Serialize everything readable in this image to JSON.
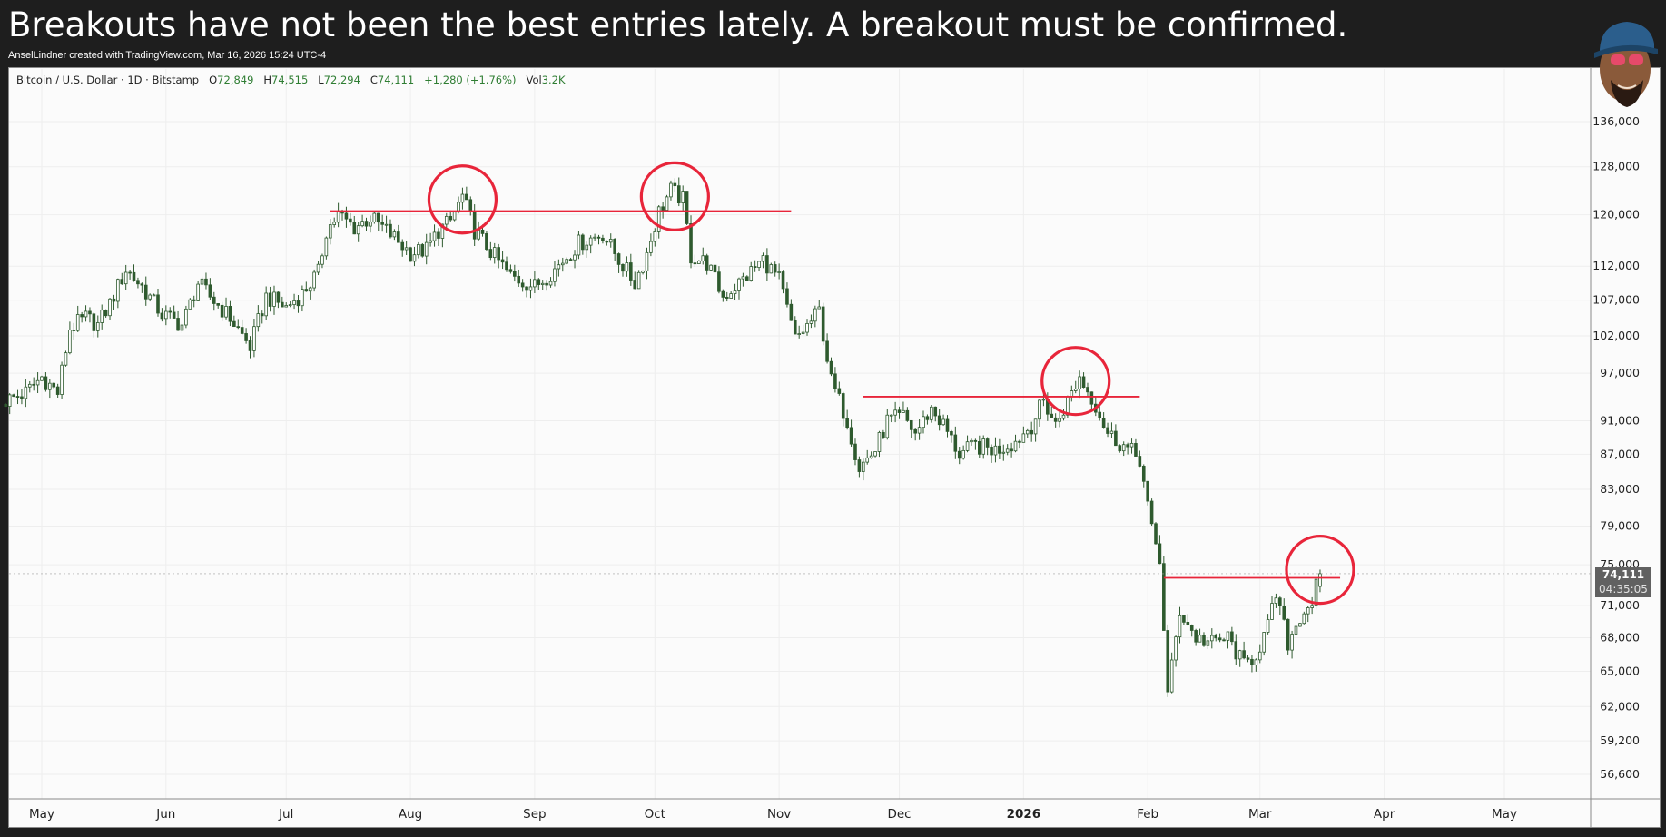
{
  "headline": "Breakouts have not been the best entries lately. A breakout must be confirmed.",
  "credit": "AnselLindner created with TradingView.com, Mar 16, 2026 15:24 UTC-4",
  "legend": {
    "symbol": "Bitcoin / U.S. Dollar · 1D · Bitstamp",
    "open_label": "O",
    "open": "72,849",
    "high_label": "H",
    "high": "74,515",
    "low_label": "L",
    "low": "72,294",
    "close_label": "C",
    "close": "74,111",
    "change": "+1,280 (+1.76%)",
    "vol_label": "Vol",
    "vol": "3.2K"
  },
  "price_tag": {
    "price": "74,111",
    "countdown": "04:35:05"
  },
  "colors": {
    "candle": "#2e5a2e",
    "annotation": "#e8253a",
    "grid": "#eeeeee",
    "background": "#fbfbfb"
  },
  "chart_data": {
    "type": "candlestick",
    "title": "Bitcoin / U.S. Dollar · 1D · Bitstamp",
    "scale": "log",
    "ylim": [
      54000,
      148000
    ],
    "y_ticks": [
      {
        "v": 136000,
        "label": "136,000"
      },
      {
        "v": 128000,
        "label": "128,000"
      },
      {
        "v": 120000,
        "label": "120,000"
      },
      {
        "v": 112000,
        "label": "112,000"
      },
      {
        "v": 107000,
        "label": "107,000"
      },
      {
        "v": 102000,
        "label": "102,000"
      },
      {
        "v": 97000,
        "label": "97,000"
      },
      {
        "v": 91000,
        "label": "91,000"
      },
      {
        "v": 87000,
        "label": "87,000"
      },
      {
        "v": 83000,
        "label": "83,000"
      },
      {
        "v": 79000,
        "label": "79,000"
      },
      {
        "v": 75000,
        "label": "75,000"
      },
      {
        "v": 71000,
        "label": "71,000"
      },
      {
        "v": 68000,
        "label": "68,000"
      },
      {
        "v": 65000,
        "label": "65,000"
      },
      {
        "v": 62000,
        "label": "62,000"
      },
      {
        "v": 59200,
        "label": "59,200"
      },
      {
        "v": 56600,
        "label": "56,600"
      }
    ],
    "x_ticks": [
      {
        "date": "2025-05-01",
        "label": "May",
        "bold": false
      },
      {
        "date": "2025-06-01",
        "label": "Jun",
        "bold": false
      },
      {
        "date": "2025-07-01",
        "label": "Jul",
        "bold": false
      },
      {
        "date": "2025-08-01",
        "label": "Aug",
        "bold": false
      },
      {
        "date": "2025-09-01",
        "label": "Sep",
        "bold": false
      },
      {
        "date": "2025-10-01",
        "label": "Oct",
        "bold": false
      },
      {
        "date": "2025-11-01",
        "label": "Nov",
        "bold": false
      },
      {
        "date": "2025-12-01",
        "label": "Dec",
        "bold": false
      },
      {
        "date": "2026-01-01",
        "label": "2026",
        "bold": true
      },
      {
        "date": "2026-02-01",
        "label": "Feb",
        "bold": false
      },
      {
        "date": "2026-03-01",
        "label": "Mar",
        "bold": false
      },
      {
        "date": "2026-04-01",
        "label": "Apr",
        "bold": false
      },
      {
        "date": "2026-05-01",
        "label": "May",
        "bold": false
      }
    ],
    "series": [
      {
        "date": "2025-04-22",
        "close": 93500
      },
      {
        "date": "2025-04-27",
        "close": 94500
      },
      {
        "date": "2025-05-01",
        "close": 96500
      },
      {
        "date": "2025-05-05",
        "close": 94500
      },
      {
        "date": "2025-05-08",
        "close": 103000
      },
      {
        "date": "2025-05-12",
        "close": 104500
      },
      {
        "date": "2025-05-15",
        "close": 103500
      },
      {
        "date": "2025-05-18",
        "close": 106500
      },
      {
        "date": "2025-05-22",
        "close": 111500
      },
      {
        "date": "2025-05-26",
        "close": 109000
      },
      {
        "date": "2025-05-31",
        "close": 105000
      },
      {
        "date": "2025-06-05",
        "close": 103500
      },
      {
        "date": "2025-06-09",
        "close": 109500
      },
      {
        "date": "2025-06-12",
        "close": 107500
      },
      {
        "date": "2025-06-17",
        "close": 104500
      },
      {
        "date": "2025-06-22",
        "close": 100500
      },
      {
        "date": "2025-06-26",
        "close": 107500
      },
      {
        "date": "2025-07-01",
        "close": 106000
      },
      {
        "date": "2025-07-05",
        "close": 108000
      },
      {
        "date": "2025-07-09",
        "close": 111000
      },
      {
        "date": "2025-07-11",
        "close": 117500
      },
      {
        "date": "2025-07-14",
        "close": 120000
      },
      {
        "date": "2025-07-18",
        "close": 118000
      },
      {
        "date": "2025-07-22",
        "close": 119500
      },
      {
        "date": "2025-07-26",
        "close": 117500
      },
      {
        "date": "2025-08-01",
        "close": 114000
      },
      {
        "date": "2025-08-05",
        "close": 114500
      },
      {
        "date": "2025-08-08",
        "close": 117500
      },
      {
        "date": "2025-08-11",
        "close": 119000
      },
      {
        "date": "2025-08-14",
        "close": 123000
      },
      {
        "date": "2025-08-17",
        "close": 117500
      },
      {
        "date": "2025-08-22",
        "close": 113500
      },
      {
        "date": "2025-08-26",
        "close": 110500
      },
      {
        "date": "2025-09-01",
        "close": 109000
      },
      {
        "date": "2025-09-06",
        "close": 111500
      },
      {
        "date": "2025-09-12",
        "close": 115500
      },
      {
        "date": "2025-09-18",
        "close": 117000
      },
      {
        "date": "2025-09-22",
        "close": 113000
      },
      {
        "date": "2025-09-26",
        "close": 109500
      },
      {
        "date": "2025-09-29",
        "close": 114000
      },
      {
        "date": "2025-10-02",
        "close": 120500
      },
      {
        "date": "2025-10-05",
        "close": 124000
      },
      {
        "date": "2025-10-08",
        "close": 122500
      },
      {
        "date": "2025-10-10",
        "close": 113500
      },
      {
        "date": "2025-10-14",
        "close": 112500
      },
      {
        "date": "2025-10-18",
        "close": 107500
      },
      {
        "date": "2025-10-23",
        "close": 110000
      },
      {
        "date": "2025-10-28",
        "close": 113000
      },
      {
        "date": "2025-11-01",
        "close": 110000
      },
      {
        "date": "2025-11-05",
        "close": 101500
      },
      {
        "date": "2025-11-09",
        "close": 104000
      },
      {
        "date": "2025-11-11",
        "close": 105500
      },
      {
        "date": "2025-11-14",
        "close": 96000
      },
      {
        "date": "2025-11-18",
        "close": 91000
      },
      {
        "date": "2025-11-21",
        "close": 85500
      },
      {
        "date": "2025-11-25",
        "close": 87500
      },
      {
        "date": "2025-11-28",
        "close": 91000
      },
      {
        "date": "2025-12-02",
        "close": 91500
      },
      {
        "date": "2025-12-05",
        "close": 89500
      },
      {
        "date": "2025-12-09",
        "close": 92500
      },
      {
        "date": "2025-12-12",
        "close": 90500
      },
      {
        "date": "2025-12-16",
        "close": 87000
      },
      {
        "date": "2025-12-20",
        "close": 88000
      },
      {
        "date": "2025-12-25",
        "close": 87500
      },
      {
        "date": "2025-12-30",
        "close": 88500
      },
      {
        "date": "2026-01-03",
        "close": 90500
      },
      {
        "date": "2026-01-06",
        "close": 93500
      },
      {
        "date": "2026-01-09",
        "close": 90500
      },
      {
        "date": "2026-01-13",
        "close": 94500
      },
      {
        "date": "2026-01-15",
        "close": 96500
      },
      {
        "date": "2026-01-19",
        "close": 93000
      },
      {
        "date": "2026-01-22",
        "close": 89500
      },
      {
        "date": "2026-01-26",
        "close": 88000
      },
      {
        "date": "2026-01-30",
        "close": 86500
      },
      {
        "date": "2026-02-02",
        "close": 78500
      },
      {
        "date": "2026-02-04",
        "close": 75500
      },
      {
        "date": "2026-02-06",
        "close": 63000
      },
      {
        "date": "2026-02-09",
        "close": 70500
      },
      {
        "date": "2026-02-13",
        "close": 68000
      },
      {
        "date": "2026-02-17",
        "close": 67500
      },
      {
        "date": "2026-02-21",
        "close": 68000
      },
      {
        "date": "2026-02-25",
        "close": 65500
      },
      {
        "date": "2026-02-28",
        "close": 66500
      },
      {
        "date": "2026-03-03",
        "close": 69000
      },
      {
        "date": "2026-03-05",
        "close": 72000
      },
      {
        "date": "2026-03-08",
        "close": 67500
      },
      {
        "date": "2026-03-11",
        "close": 70000
      },
      {
        "date": "2026-03-14",
        "close": 71500
      },
      {
        "date": "2026-03-16",
        "close": 74111
      }
    ],
    "annotations": {
      "lines": [
        {
          "from": "2025-07-12",
          "to": "2025-11-04",
          "price": 120600
        },
        {
          "from": "2025-11-22",
          "to": "2026-01-30",
          "price": 94000
        },
        {
          "from": "2026-02-05",
          "to": "2026-03-21",
          "price": 73700
        }
      ],
      "circles": [
        {
          "date": "2025-08-14",
          "price": 122500
        },
        {
          "date": "2025-10-06",
          "price": 123000
        },
        {
          "date": "2026-01-14",
          "price": 96000
        },
        {
          "date": "2026-03-16",
          "price": 74500
        }
      ]
    }
  }
}
